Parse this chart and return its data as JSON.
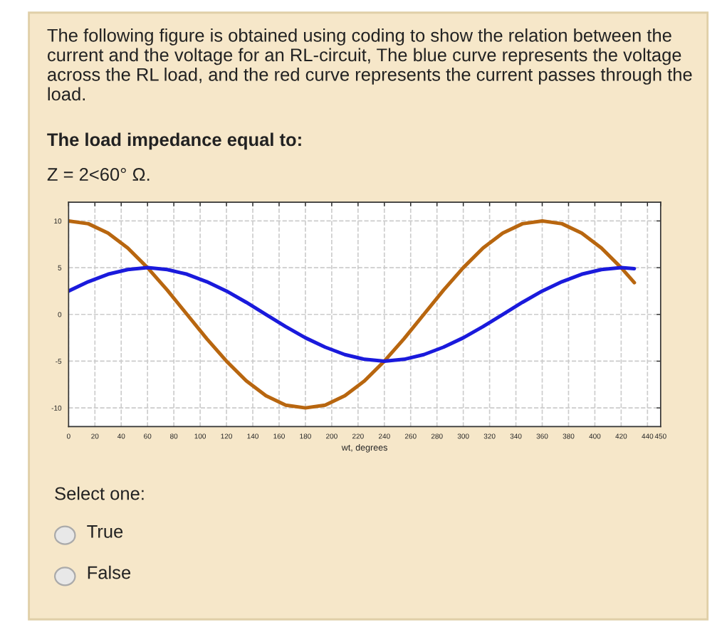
{
  "chart_data": {
    "type": "line",
    "title": "The following figure is obtained using coding to show the relation between the current and the voltage for an RL-circuit, The blue curve represents the voltage across the RL load, and the red curve represents the current passes through the load.",
    "subtitle": "The load impedance equal to:",
    "annotations": [
      "Z = 2<60° Ω.",
      "Select one:",
      "True",
      "False"
    ],
    "xlabel": "wt, degrees",
    "x": [
      0,
      15,
      30,
      45,
      60,
      75,
      90,
      105,
      120,
      135,
      150,
      165,
      180,
      195,
      210,
      225,
      240,
      255,
      270,
      285,
      300,
      315,
      330,
      345,
      360,
      375,
      390,
      405,
      420,
      430
    ],
    "series": [
      {
        "color": "#b8660f",
        "values": [
          10,
          9.7,
          8.7,
          7.1,
          5,
          2.6,
          0,
          -2.6,
          -5,
          -7.1,
          -8.7,
          -9.7,
          -10,
          -9.7,
          -8.7,
          -7.1,
          -5,
          -2.6,
          0,
          2.6,
          5,
          7.1,
          8.7,
          9.7,
          10,
          9.7,
          8.7,
          7.1,
          5,
          3.4
        ]
      },
      {
        "color": "#1a1adc",
        "values": [
          2.5,
          3.5,
          4.3,
          4.8,
          5,
          4.8,
          4.3,
          3.5,
          2.5,
          1.3,
          0,
          -1.3,
          -2.5,
          -3.5,
          -4.3,
          -4.8,
          -5,
          -4.8,
          -4.3,
          -3.5,
          -2.5,
          -1.3,
          0,
          1.3,
          2.5,
          3.5,
          4.3,
          4.8,
          5,
          4.9
        ]
      }
    ],
    "xlim": [
      0,
      450
    ],
    "xticks": [
      0,
      20,
      40,
      60,
      80,
      100,
      120,
      140,
      160,
      180,
      200,
      220,
      240,
      260,
      280,
      300,
      320,
      340,
      360,
      380,
      400,
      420,
      440,
      450
    ],
    "ylim": [
      -12,
      12
    ],
    "yticks": [
      -10,
      -5,
      0,
      5,
      10
    ],
    "grid": true,
    "legend": false,
    "marker": "none",
    "line_style": "solid"
  }
}
